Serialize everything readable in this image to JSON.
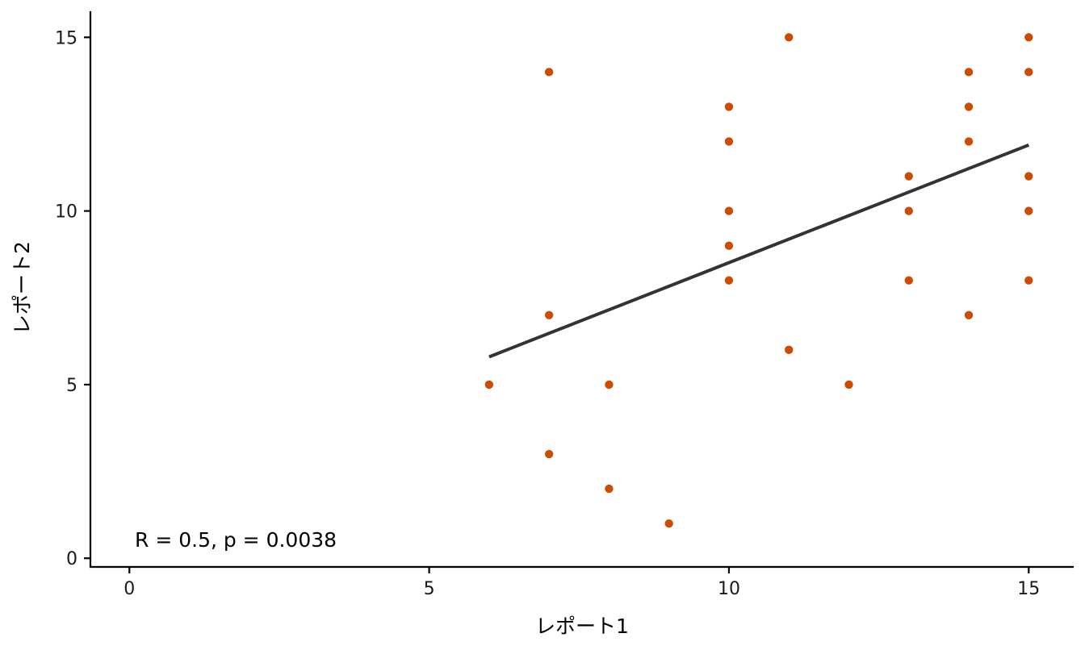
{
  "chart_data": {
    "type": "scatter",
    "xlabel": "レポート1",
    "ylabel": "レポート2",
    "xlim": [
      -0.65,
      15.75
    ],
    "ylim": [
      -0.25,
      15.75
    ],
    "x_ticks": [
      0,
      5,
      10,
      15
    ],
    "y_ticks": [
      0,
      5,
      10,
      15
    ],
    "x_tick_labels": [
      "0",
      "5",
      "10",
      "15"
    ],
    "y_tick_labels": [
      "0",
      "5",
      "10",
      "15"
    ],
    "grid": false,
    "point_color": "#CC4C02",
    "line_color": "#333333",
    "points": [
      {
        "x": 6,
        "y": 5
      },
      {
        "x": 7,
        "y": 14
      },
      {
        "x": 7,
        "y": 7
      },
      {
        "x": 7,
        "y": 3
      },
      {
        "x": 8,
        "y": 5
      },
      {
        "x": 8,
        "y": 2
      },
      {
        "x": 9,
        "y": 1
      },
      {
        "x": 10,
        "y": 13
      },
      {
        "x": 10,
        "y": 12
      },
      {
        "x": 10,
        "y": 10
      },
      {
        "x": 10,
        "y": 9
      },
      {
        "x": 10,
        "y": 8
      },
      {
        "x": 11,
        "y": 15
      },
      {
        "x": 11,
        "y": 6
      },
      {
        "x": 12,
        "y": 5
      },
      {
        "x": 13,
        "y": 11
      },
      {
        "x": 13,
        "y": 10
      },
      {
        "x": 13,
        "y": 8
      },
      {
        "x": 14,
        "y": 14
      },
      {
        "x": 14,
        "y": 13
      },
      {
        "x": 14,
        "y": 12
      },
      {
        "x": 14,
        "y": 7
      },
      {
        "x": 15,
        "y": 15
      },
      {
        "x": 15,
        "y": 14
      },
      {
        "x": 15,
        "y": 11
      },
      {
        "x": 15,
        "y": 10
      },
      {
        "x": 15,
        "y": 8
      }
    ],
    "regression_line": {
      "x1": 6,
      "y1": 5.8,
      "x2": 15,
      "y2": 11.9
    },
    "annotation": "R = 0.5, p = 0.0038"
  }
}
